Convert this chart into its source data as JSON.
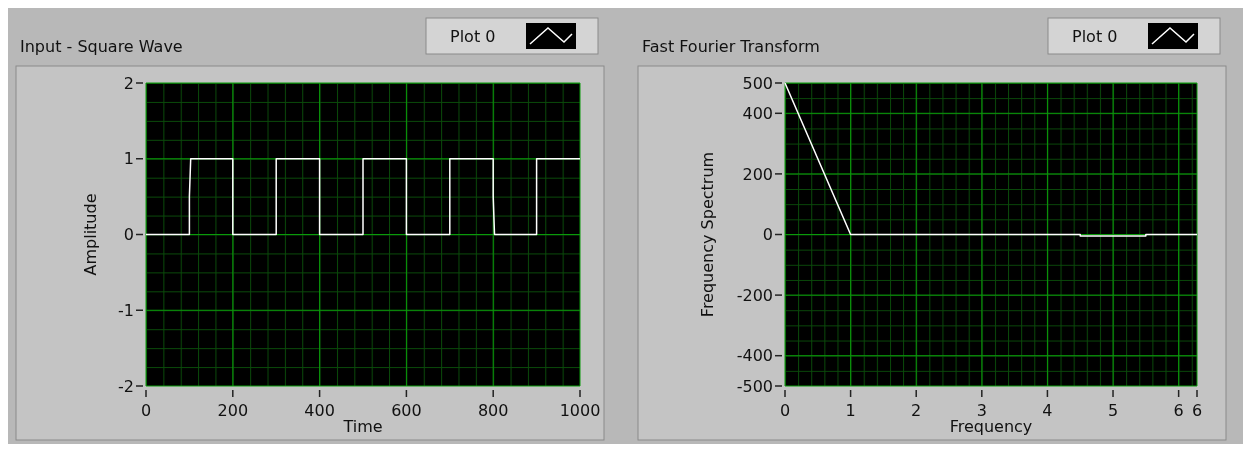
{
  "chart_data": [
    {
      "type": "line",
      "title": "Input - Square Wave",
      "xlabel": "Time",
      "ylabel": "Amplitude",
      "xlim": [
        0,
        1000
      ],
      "xticks": [
        0,
        200,
        400,
        600,
        800,
        1000
      ],
      "ylim": [
        -2,
        2
      ],
      "yticks": [
        -2,
        -1,
        0,
        1,
        2
      ],
      "grid": true,
      "legend": "top right",
      "line_style": "solid",
      "marker": "none",
      "series": [
        {
          "name": "Plot 0",
          "color": "#ffffff",
          "x": [
            0,
            100,
            100,
            103,
            200,
            200,
            300,
            300,
            400,
            400,
            500,
            500,
            600,
            600,
            700,
            700,
            800,
            800,
            803,
            900,
            900,
            1000
          ],
          "values": [
            0,
            0,
            0.5,
            1,
            1,
            0,
            0,
            1,
            1,
            0,
            0,
            1,
            1,
            0,
            0,
            1,
            1,
            0.5,
            0,
            0,
            1,
            1
          ]
        }
      ]
    },
    {
      "type": "line",
      "title": "Fast Fourier Transform",
      "xlabel": "Frequency",
      "ylabel": "Frequency Spectrum",
      "xlim": [
        0,
        6.28
      ],
      "xticks": [
        0,
        1,
        2,
        3,
        4,
        5,
        6,
        {
          "value": 6.28,
          "label": "6"
        }
      ],
      "ylim": [
        -500,
        500
      ],
      "yticks": [
        -500,
        -400,
        -200,
        0,
        200,
        400,
        500
      ],
      "grid": true,
      "legend": "top right",
      "line_style": "solid",
      "marker": "none",
      "series": [
        {
          "name": "Plot 0",
          "color": "#ffffff",
          "x": [
            0,
            1,
            4.5,
            4.5,
            5.5,
            5.5,
            6.28
          ],
          "values": [
            500,
            0,
            0,
            -5,
            -5,
            0,
            0
          ]
        }
      ]
    }
  ]
}
